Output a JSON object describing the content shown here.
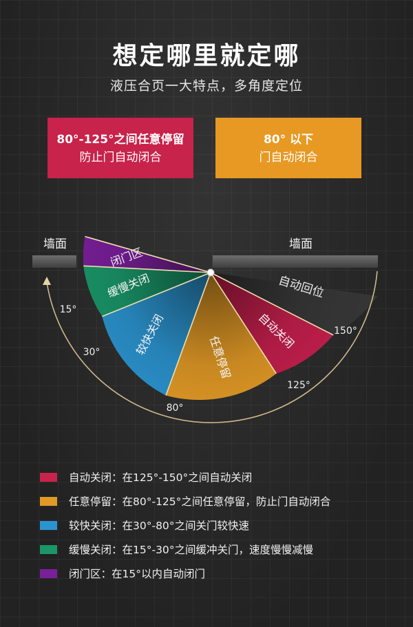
{
  "header": {
    "title": "想定哪里就定哪",
    "subtitle": "液压合页一大特点，多角度定位"
  },
  "cards": [
    {
      "line1": "80°-125°之间任意停留",
      "line2": "防止门自动闭合",
      "color": "#c8234a"
    },
    {
      "line1": "80° 以下",
      "line2": "门自动闭合",
      "color": "#e79923"
    }
  ],
  "diagram": {
    "wall_left": "墙面",
    "wall_right": "墙面",
    "label_auto_return": "自动回位",
    "angle_labels": [
      "15°",
      "30°",
      "80°",
      "125°",
      "150°"
    ],
    "angles": [
      15,
      30,
      80,
      125,
      150
    ],
    "zones": [
      {
        "id": "close-zone",
        "label": "闭门区",
        "from": 0,
        "to": 15,
        "color": "#7a1f9a"
      },
      {
        "id": "slow-close",
        "label": "缓慢关闭",
        "from": 15,
        "to": 30,
        "color": "#1a9669"
      },
      {
        "id": "fast-close",
        "label": "较快关闭",
        "from": 30,
        "to": 80,
        "color": "#2b94cf"
      },
      {
        "id": "free-stop",
        "label": "任意停留",
        "from": 80,
        "to": 125,
        "color": "#e29a26"
      },
      {
        "id": "auto-close",
        "label": "自动关闭",
        "from": 125,
        "to": 150,
        "color": "#c41f4d"
      }
    ]
  },
  "legend": [
    {
      "label": "自动关闭：在125°-150°之间自动关闭",
      "color": "#c8234a"
    },
    {
      "label": "任意停留：在80°-125°之间任意停留，防止门自动闭合",
      "color": "#e29a26"
    },
    {
      "label": "较快关闭：在30°-80°之间关门较快速",
      "color": "#2b94cf"
    },
    {
      "label": "缓慢关闭：在15°-30°之间缓冲关门，速度慢慢减慢",
      "color": "#1a9669"
    },
    {
      "label": "闭门区：在15°以内自动闭门",
      "color": "#7a1f9a"
    }
  ]
}
